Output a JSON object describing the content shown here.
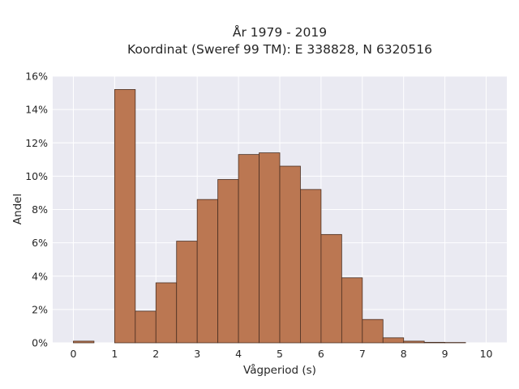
{
  "chart_data": {
    "type": "bar",
    "title": "År 1979 - 2019",
    "subtitle": "Koordinat (Sweref 99 TM): E 338828, N 6320516",
    "xlabel": "Vågperiod (s)",
    "ylabel": "Andel",
    "xlim": [
      -0.5,
      10.5
    ],
    "ylim": [
      0,
      0.16
    ],
    "xticks": [
      0,
      1,
      2,
      3,
      4,
      5,
      6,
      7,
      8,
      9,
      10
    ],
    "xtick_labels": [
      "0",
      "1",
      "2",
      "3",
      "4",
      "5",
      "6",
      "7",
      "8",
      "9",
      "10"
    ],
    "yticks": [
      0,
      0.02,
      0.04,
      0.06,
      0.08,
      0.1,
      0.12,
      0.14,
      0.16
    ],
    "ytick_labels": [
      "0%",
      "2%",
      "4%",
      "6%",
      "8%",
      "10%",
      "12%",
      "14%",
      "16%"
    ],
    "bin_width": 0.5,
    "bins": [
      {
        "x0": 0.0,
        "value": 0.001
      },
      {
        "x0": 1.0,
        "value": 0.152
      },
      {
        "x0": 1.5,
        "value": 0.019
      },
      {
        "x0": 2.0,
        "value": 0.036
      },
      {
        "x0": 2.5,
        "value": 0.061
      },
      {
        "x0": 3.0,
        "value": 0.086
      },
      {
        "x0": 3.5,
        "value": 0.098
      },
      {
        "x0": 4.0,
        "value": 0.113
      },
      {
        "x0": 4.5,
        "value": 0.114
      },
      {
        "x0": 5.0,
        "value": 0.106
      },
      {
        "x0": 5.5,
        "value": 0.092
      },
      {
        "x0": 6.0,
        "value": 0.065
      },
      {
        "x0": 6.5,
        "value": 0.039
      },
      {
        "x0": 7.0,
        "value": 0.014
      },
      {
        "x0": 7.5,
        "value": 0.003
      },
      {
        "x0": 8.0,
        "value": 0.001
      },
      {
        "x0": 8.5,
        "value": 0.0003
      },
      {
        "x0": 9.0,
        "value": 0.0002
      }
    ],
    "grid": true,
    "colors": {
      "bar_fill": "#bb7752",
      "bar_edge": "#4a2f22",
      "plot_background": "#eaeaf2",
      "grid": "#ffffff",
      "text": "#262626"
    }
  }
}
